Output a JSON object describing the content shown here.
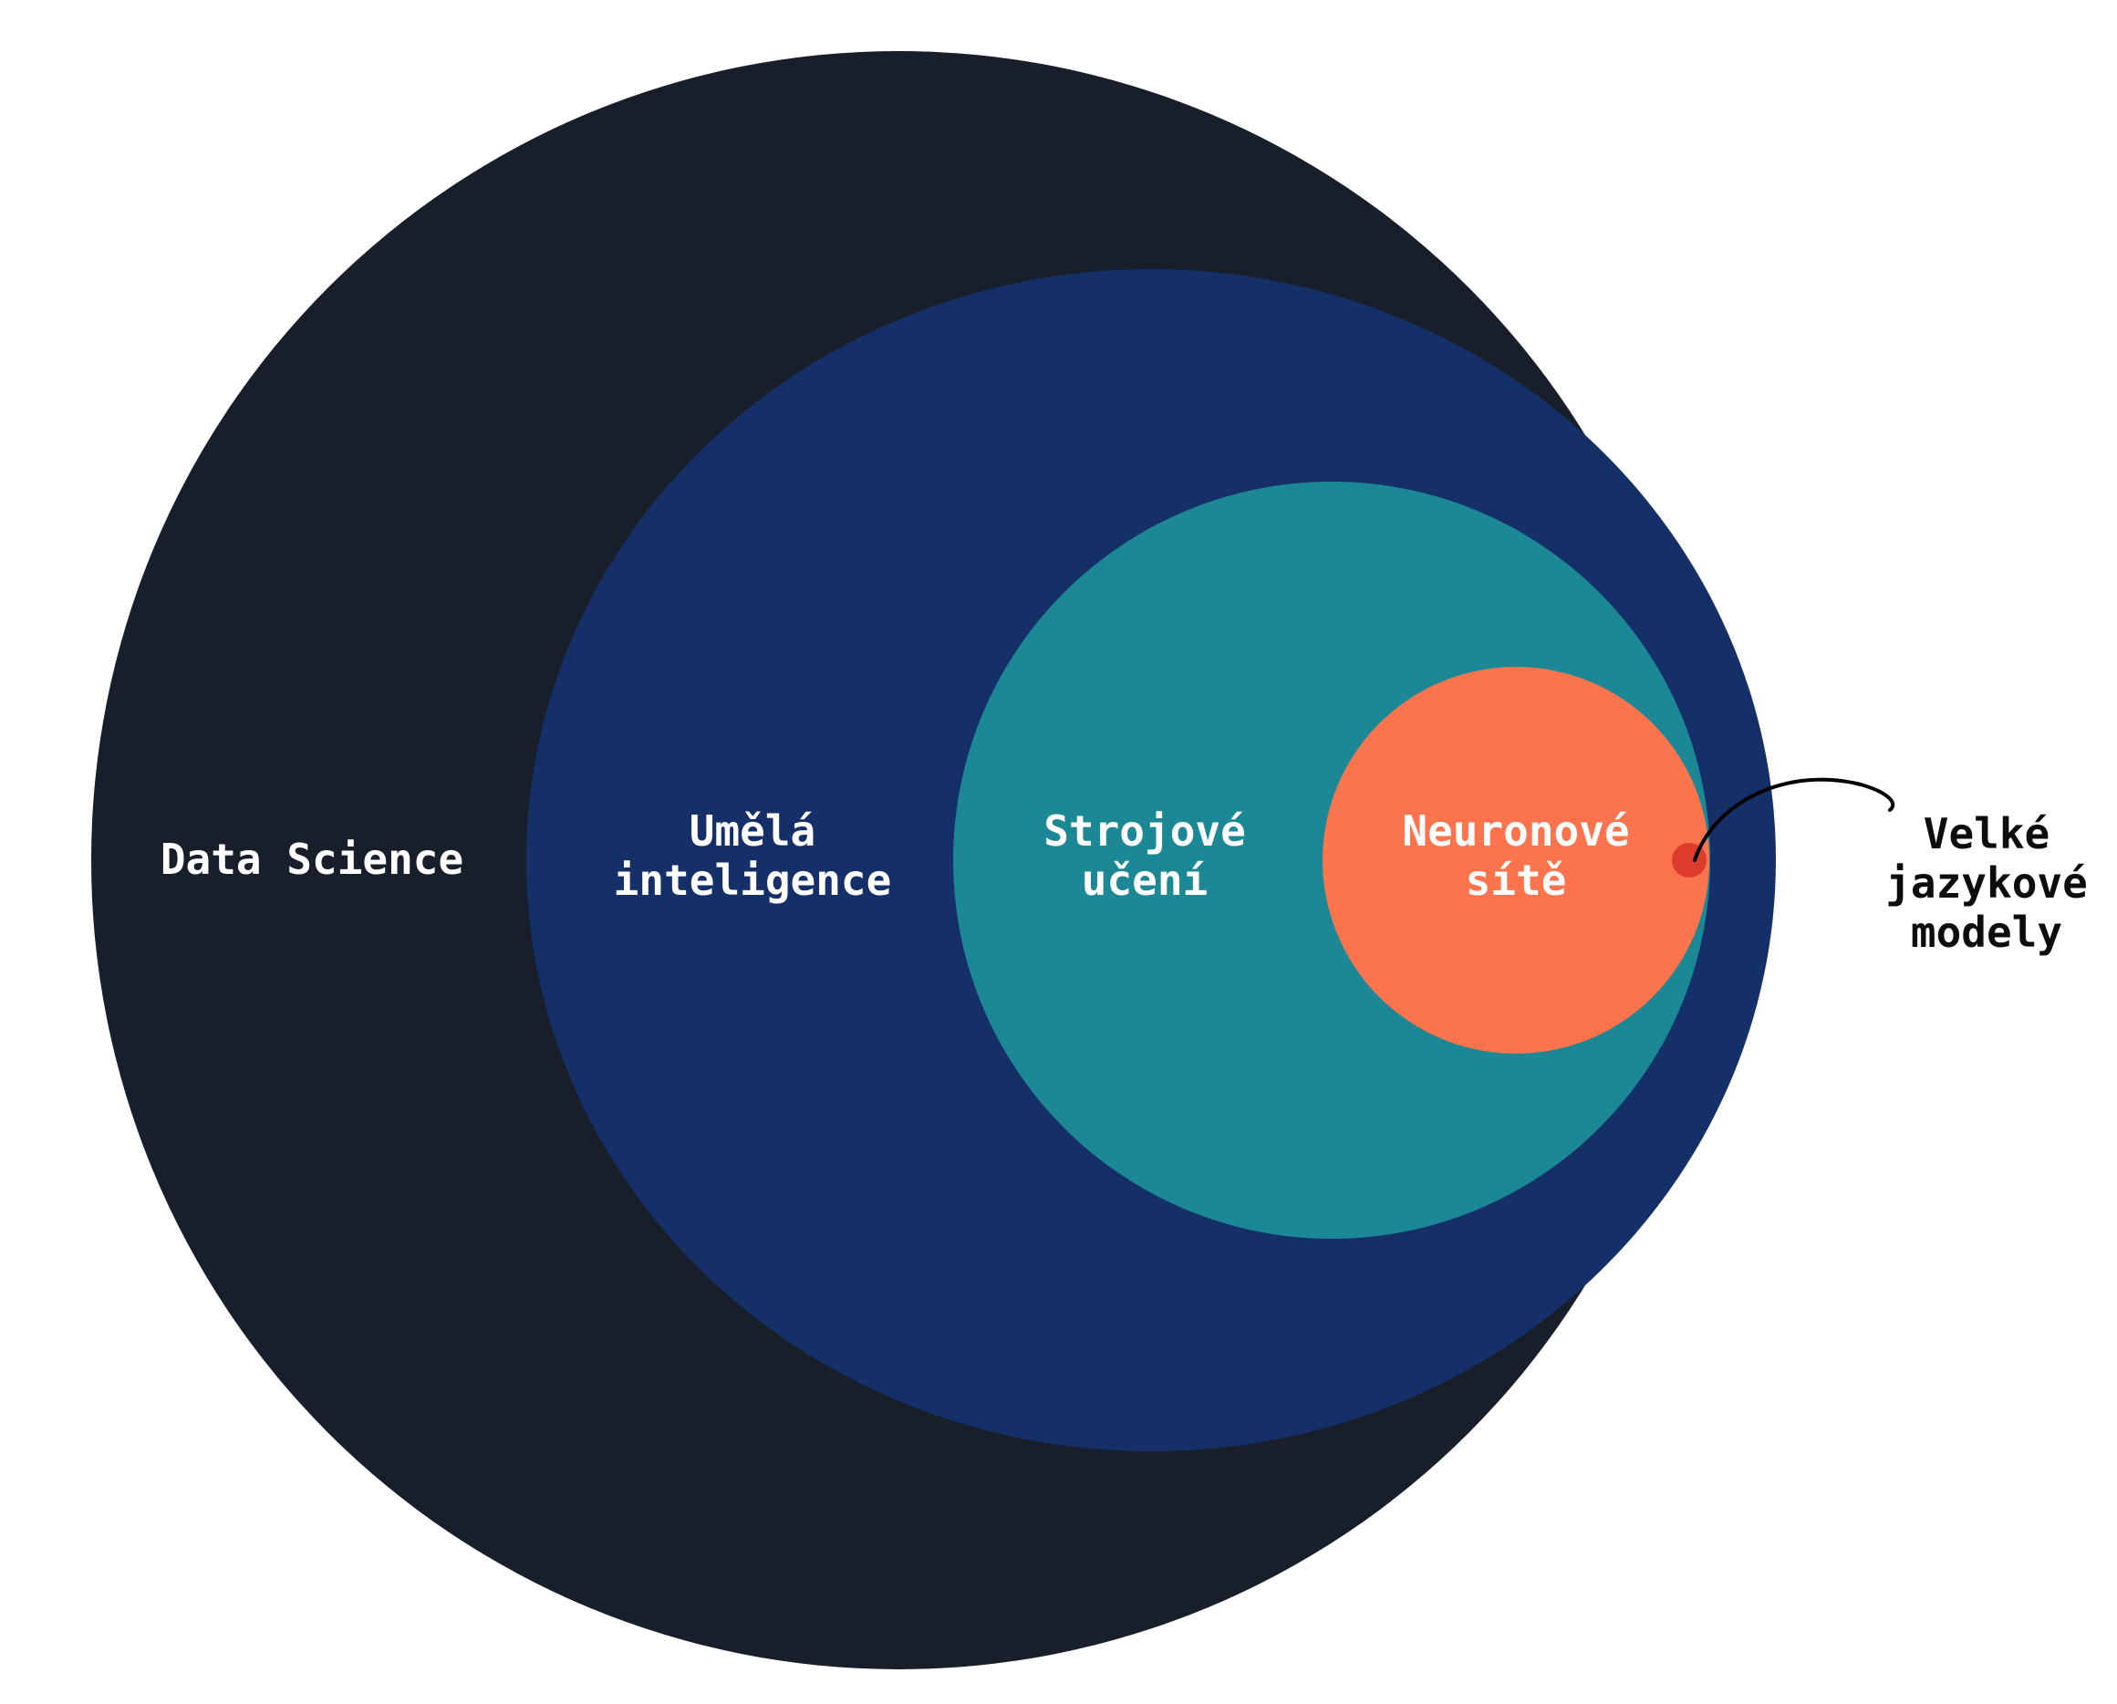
{
  "diagram": {
    "colors": {
      "data_science": "#181f2a",
      "ai": "#153068",
      "ml": "#1c8896",
      "nn": "#fc744d",
      "llm": "#dd3b2b",
      "background": "#ffffff",
      "callout": "#000000"
    },
    "labels": {
      "data_science": "Data Science",
      "ai_line1": "Umělá",
      "ai_line2": "inteligence",
      "ml_line1": "Strojové",
      "ml_line2": "učení",
      "nn_line1": "Neuronové",
      "nn_line2": "sítě",
      "llm_line1": "Velké",
      "llm_line2": "jazykové",
      "llm_line3": "modely"
    }
  }
}
